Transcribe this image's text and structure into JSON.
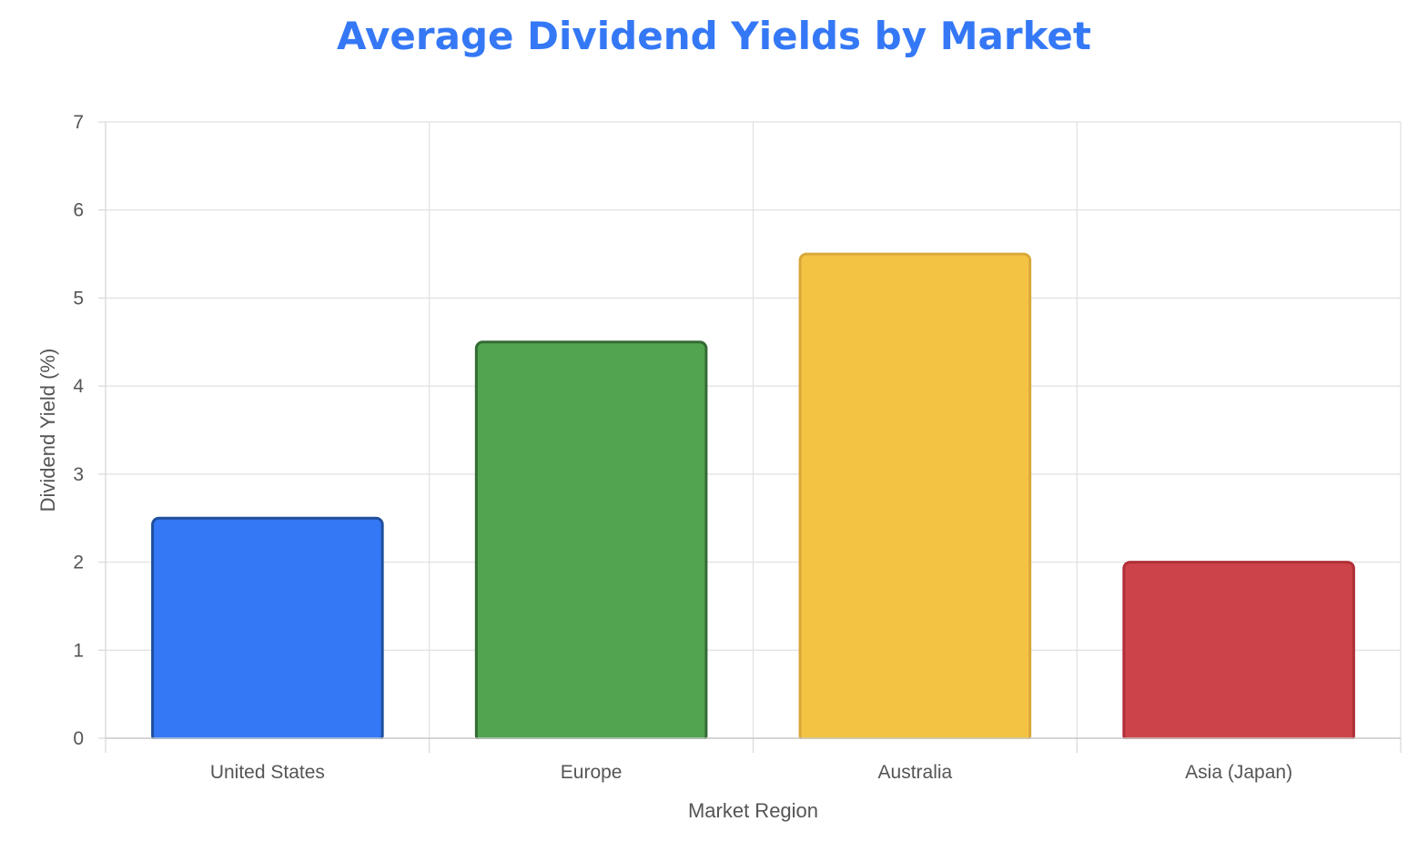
{
  "chart_data": {
    "type": "bar",
    "title": "Average Dividend Yields by Market",
    "title_color": "#3578f6",
    "xlabel": "Market Region",
    "ylabel": "Dividend Yield (%)",
    "categories": [
      "United States",
      "Europe",
      "Australia",
      "Asia (Japan)"
    ],
    "values": [
      2.5,
      4.5,
      5.5,
      2.0
    ],
    "colors": [
      "#3578f6",
      "#52a450",
      "#f3c443",
      "#cc4449"
    ],
    "border_colors": [
      "#1f4e9c",
      "#346b34",
      "#d9a73a",
      "#b02f38"
    ],
    "ylim": [
      0,
      7
    ],
    "yticks": [
      "0",
      "1",
      "2",
      "3",
      "4",
      "5",
      "6",
      "7"
    ],
    "grid": true,
    "legend": "none"
  }
}
